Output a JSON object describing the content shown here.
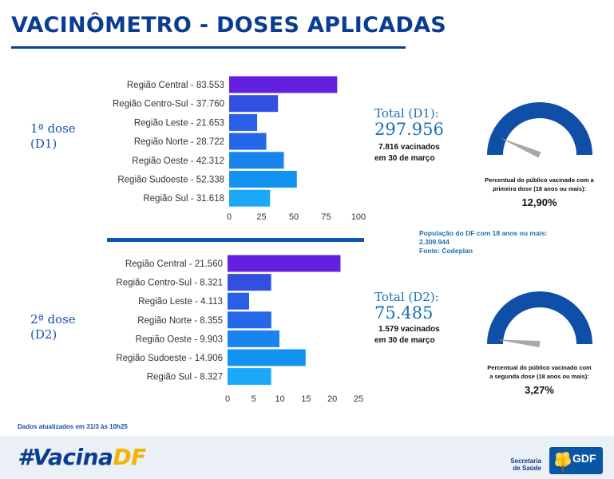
{
  "title": "VACINÔMETRO - DOSES APLICADAS",
  "colors": {
    "primary": "#0a3d91",
    "accent": "#1c6fb0",
    "brand_yellow": "#f5b400"
  },
  "dose1": {
    "label_line1": "1ª dose",
    "label_line2": "(D1)",
    "total_title": "Total (D1):",
    "total_value": "297.956",
    "vaccinated_line1": "7.816 vacinados",
    "vaccinated_line2": "em 30 de março",
    "gauge_caption_line1": "Percentual do público vacinado com a",
    "gauge_caption_line2": "primeira dose (18 anos ou mais):",
    "gauge_percent": "12,90%"
  },
  "dose2": {
    "label_line1": "2ª dose",
    "label_line2": "(D2)",
    "total_title": "Total (D2):",
    "total_value": "75.485",
    "vaccinated_line1": "1.579 vacinados",
    "vaccinated_line2": "em 30 de março",
    "gauge_caption_line1": "Percentual do público vacinado com",
    "gauge_caption_line2": "a segunda dose (18 anos ou mais):",
    "gauge_percent": "3,27%"
  },
  "population_note": {
    "line1": "População do DF com 18 anos ou mais:",
    "line2": "2.309.944",
    "line3": "Fonte: Codeplan"
  },
  "update_note": "Dados atualizados em 31/3 às 10h25",
  "footer": {
    "hashtag_main": "#Vacina",
    "hashtag_accent": "DF",
    "secretaria_line1": "Secretaria",
    "secretaria_line2": "de Saúde",
    "gdf": "GDF"
  },
  "chart_data": [
    {
      "type": "bar",
      "orientation": "horizontal",
      "categories": [
        "Região Central - 83.553",
        "Região Centro-Sul - 37.760",
        "Região Leste - 21.653",
        "Região Norte - 28.722",
        "Região Oeste - 42.312",
        "Região Sudoeste - 52.338",
        "Região Sul - 31.618"
      ],
      "values": [
        83.553,
        37.76,
        21.653,
        28.722,
        42.312,
        52.338,
        31.618
      ],
      "xlim": [
        0,
        100
      ],
      "xticks": [
        "0",
        "25",
        "50",
        "75",
        "100"
      ],
      "xtick_values": [
        0,
        25,
        50,
        75,
        100
      ],
      "colors": [
        "#6321df",
        "#3150e0",
        "#2a5ee6",
        "#2468e9",
        "#1a84ee",
        "#1293f2",
        "#1aa9f8"
      ]
    },
    {
      "type": "bar",
      "orientation": "horizontal",
      "categories": [
        "Região Central - 21.560",
        "Região Centro-Sul - 8.321",
        "Região Leste - 4.113",
        "Região Norte - 8.355",
        "Região Oeste - 9.903",
        "Região Sudoeste - 14.906",
        "Região Sul - 8.327"
      ],
      "values": [
        21.56,
        8.321,
        4.113,
        8.355,
        9.903,
        14.906,
        8.327
      ],
      "xlim": [
        0,
        25
      ],
      "xticks": [
        "0",
        "5",
        "10",
        "15",
        "20",
        "25"
      ],
      "xtick_values": [
        0,
        5,
        10,
        15,
        20,
        25
      ],
      "colors": [
        "#6321df",
        "#3150e0",
        "#2a5ee6",
        "#2468e9",
        "#1a84ee",
        "#1293f2",
        "#1aa9f8"
      ]
    }
  ],
  "gauges": [
    {
      "name": "dose1",
      "value_fraction": 0.129
    },
    {
      "name": "dose2",
      "value_fraction": 0.0327
    }
  ]
}
